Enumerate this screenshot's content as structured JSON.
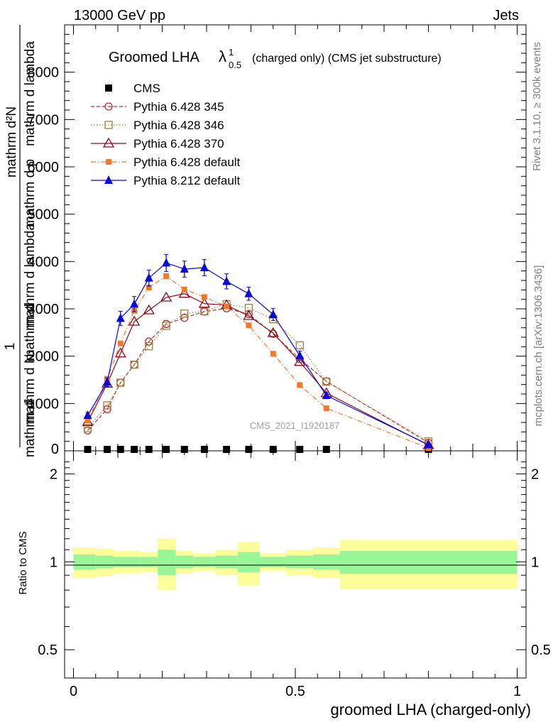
{
  "header": {
    "left": "13000 GeV pp",
    "right": "Jets"
  },
  "side_text": {
    "rivet": "Rivet 3.1.10, ≥ 300k events",
    "mcplots": "mcplots.cern.ch [arXiv:1306.3436]"
  },
  "colors": {
    "cms": "#000000",
    "p345": "#b03030",
    "p346": "#a08040",
    "p370": "#8b0a1a",
    "p6def": "#f5772a",
    "p8": "#0a0ad4",
    "band_inner": "#98f598",
    "band_outer": "#fdfd9a"
  },
  "chart_data": {
    "type": "line",
    "title_main": "Groomed LHA",
    "title_symbol": "λ",
    "title_sup": "1",
    "title_sub": "0.5",
    "title_rest": "(charged only) (CMS jet substructure)",
    "watermark": "CMS_2021_I1920187",
    "ylabel_top": "1",
    "ylabel_num": "mathrm d²N",
    "ylabel_den1": "mathrm d N",
    "ylabel_den2": "mathrm d p",
    "ylabel_den3": "mathrm d lambda",
    "ylabel_den4": "mathrm d",
    "ylabel_den5": "mathrm d",
    "ylabel_den6": "mathrm d lambda",
    "xlabel": "groomed LHA (charged-only)",
    "ratio_ylabel": "Ratio to CMS",
    "xlim": [
      -0.02,
      1.02
    ],
    "ylim": [
      0,
      9000
    ],
    "y_ticks": [
      1000,
      2000,
      3000,
      4000,
      5000,
      6000,
      7000,
      8000
    ],
    "y_tick_labels": [
      "1000",
      "2000",
      "3000",
      "4000",
      "5000",
      "6000",
      "7000",
      "8000"
    ],
    "y_zero_label": "0",
    "ratio_ylim": [
      0.4,
      2.4
    ],
    "ratio_ticks": [
      0.5,
      1,
      2
    ],
    "ratio_tick_labels": [
      "0.5",
      "1",
      "2"
    ],
    "x_ticks": [
      0,
      0.5,
      1
    ],
    "x_tick_labels": [
      "0",
      "0.5",
      "1"
    ],
    "x": [
      0.032,
      0.076,
      0.106,
      0.137,
      0.17,
      0.209,
      0.25,
      0.295,
      0.345,
      0.395,
      0.45,
      0.51,
      0.57,
      0.8
    ],
    "series": [
      {
        "name": "CMS",
        "key": "cms",
        "marker": "square-filled",
        "line": "none",
        "values": [
          15,
          15,
          15,
          15,
          15,
          15,
          15,
          15,
          15,
          15,
          15,
          15,
          15,
          15
        ]
      },
      {
        "name": "Pythia 6.428 345",
        "key": "p345",
        "marker": "circle-open",
        "line": "dashed",
        "values": [
          430,
          880,
          1440,
          1820,
          2310,
          2680,
          2810,
          2940,
          3010,
          2890,
          2470,
          1940,
          1470,
          170
        ]
      },
      {
        "name": "Pythia 6.428 346",
        "key": "p346",
        "marker": "square-open",
        "line": "dotted",
        "values": [
          480,
          960,
          1440,
          1820,
          2210,
          2640,
          2900,
          2950,
          3100,
          3020,
          2780,
          2230,
          1460,
          200
        ]
      },
      {
        "name": "Pythia 6.428 370",
        "key": "p370",
        "marker": "triangle-open",
        "line": "solid",
        "values": [
          610,
          1420,
          2060,
          2730,
          2970,
          3240,
          3320,
          3110,
          3080,
          2850,
          2490,
          1880,
          1220,
          120
        ]
      },
      {
        "name": "Pythia 6.428 default",
        "key": "p6def",
        "marker": "square-filled-small",
        "line": "dashdot",
        "values": [
          640,
          1520,
          2270,
          2960,
          3450,
          3690,
          3410,
          3250,
          3050,
          2650,
          2050,
          1390,
          900,
          60
        ]
      },
      {
        "name": "Pythia 8.212 default",
        "key": "p8",
        "marker": "triangle-filled",
        "line": "solid",
        "values": [
          750,
          1450,
          2800,
          3100,
          3650,
          3970,
          3840,
          3870,
          3580,
          3320,
          2880,
          2010,
          1170,
          130
        ],
        "errors": [
          60,
          90,
          150,
          160,
          170,
          180,
          170,
          170,
          160,
          140,
          130,
          100,
          70,
          20
        ]
      }
    ],
    "ratio_bands": [
      {
        "x0": 0.0,
        "x1": 0.05,
        "inner": 0.06,
        "outer": 0.12
      },
      {
        "x0": 0.05,
        "x1": 0.09,
        "inner": 0.05,
        "outer": 0.11
      },
      {
        "x0": 0.09,
        "x1": 0.15,
        "inner": 0.04,
        "outer": 0.09
      },
      {
        "x0": 0.15,
        "x1": 0.19,
        "inner": 0.04,
        "outer": 0.08
      },
      {
        "x0": 0.19,
        "x1": 0.23,
        "inner": 0.1,
        "outer": 0.2
      },
      {
        "x0": 0.23,
        "x1": 0.27,
        "inner": 0.05,
        "outer": 0.09
      },
      {
        "x0": 0.27,
        "x1": 0.32,
        "inner": 0.04,
        "outer": 0.07
      },
      {
        "x0": 0.32,
        "x1": 0.37,
        "inner": 0.05,
        "outer": 0.1
      },
      {
        "x0": 0.37,
        "x1": 0.42,
        "inner": 0.08,
        "outer": 0.17
      },
      {
        "x0": 0.42,
        "x1": 0.48,
        "inner": 0.04,
        "outer": 0.07
      },
      {
        "x0": 0.48,
        "x1": 0.54,
        "inner": 0.05,
        "outer": 0.1
      },
      {
        "x0": 0.54,
        "x1": 0.6,
        "inner": 0.06,
        "outer": 0.12
      },
      {
        "x0": 0.6,
        "x1": 1.0,
        "inner": 0.09,
        "outer": 0.19
      }
    ]
  }
}
